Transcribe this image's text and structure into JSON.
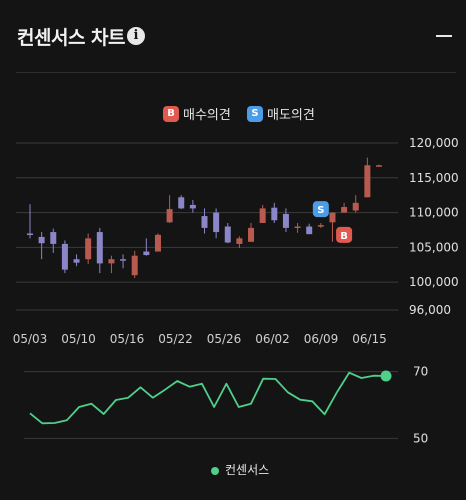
{
  "header": {
    "title": "컨센서스 차트",
    "info_icon": "info-icon",
    "collapse_icon": "minus-icon"
  },
  "legend": {
    "buy_badge": "B",
    "buy_label": "매수의견",
    "sell_badge": "S",
    "sell_label": "매도의견"
  },
  "colors": {
    "background": "#141414",
    "buy": "#e05a4f",
    "sell": "#4a9de6",
    "up_candle": "#b85a4f",
    "down_candle": "#8a86c8",
    "consensus_line": "#4fd08a"
  },
  "chart_data": [
    {
      "type": "candlestick",
      "title": "",
      "x_ticks": [
        "05/03",
        "05/10",
        "05/16",
        "05/22",
        "05/26",
        "06/02",
        "06/09",
        "06/15"
      ],
      "y_ticks": [
        96000,
        100000,
        105000,
        110000,
        115000,
        120000
      ],
      "y_tick_labels": [
        "96,000",
        "100,000",
        "105,000",
        "110,000",
        "115,000",
        "120,000"
      ],
      "ylim": [
        96000,
        120000
      ],
      "candles": [
        {
          "o": 107000,
          "h": 111200,
          "l": 106300,
          "c": 106800
        },
        {
          "o": 106500,
          "h": 107200,
          "l": 103300,
          "c": 105600
        },
        {
          "o": 107200,
          "h": 107700,
          "l": 104200,
          "c": 105500
        },
        {
          "o": 105500,
          "h": 106000,
          "l": 101300,
          "c": 101800
        },
        {
          "o": 103300,
          "h": 104000,
          "l": 102300,
          "c": 102800
        },
        {
          "o": 103300,
          "h": 107000,
          "l": 102600,
          "c": 106300
        },
        {
          "o": 107200,
          "h": 107800,
          "l": 101300,
          "c": 102700
        },
        {
          "o": 102700,
          "h": 103800,
          "l": 101300,
          "c": 103300
        },
        {
          "o": 103300,
          "h": 104000,
          "l": 102000,
          "c": 103100
        },
        {
          "o": 101000,
          "h": 104500,
          "l": 100600,
          "c": 103800
        },
        {
          "o": 104400,
          "h": 106300,
          "l": 103800,
          "c": 103900
        },
        {
          "o": 104400,
          "h": 107000,
          "l": 104400,
          "c": 106800
        },
        {
          "o": 108600,
          "h": 112500,
          "l": 108500,
          "c": 110500
        },
        {
          "o": 112200,
          "h": 112500,
          "l": 110500,
          "c": 110600
        },
        {
          "o": 111100,
          "h": 111800,
          "l": 110000,
          "c": 110600
        },
        {
          "o": 109500,
          "h": 110600,
          "l": 107000,
          "c": 107800
        },
        {
          "o": 110000,
          "h": 110600,
          "l": 106300,
          "c": 107200
        },
        {
          "o": 108000,
          "h": 108500,
          "l": 105600,
          "c": 105700
        },
        {
          "o": 105500,
          "h": 106600,
          "l": 104900,
          "c": 106300
        },
        {
          "o": 105800,
          "h": 108500,
          "l": 105800,
          "c": 107800
        },
        {
          "o": 108500,
          "h": 111100,
          "l": 108500,
          "c": 110600
        },
        {
          "o": 110700,
          "h": 111400,
          "l": 108500,
          "c": 108900
        },
        {
          "o": 109800,
          "h": 110600,
          "l": 107200,
          "c": 107800
        },
        {
          "o": 107800,
          "h": 108500,
          "l": 107100,
          "c": 108000
        },
        {
          "o": 108000,
          "h": 108400,
          "l": 106900,
          "c": 106900
        },
        {
          "o": 108000,
          "h": 108500,
          "l": 107800,
          "c": 108200
        },
        {
          "o": 108600,
          "h": 110000,
          "l": 105800,
          "c": 110000
        },
        {
          "o": 110000,
          "h": 111400,
          "l": 110000,
          "c": 110800
        },
        {
          "o": 110300,
          "h": 112500,
          "l": 110000,
          "c": 111400
        },
        {
          "o": 112200,
          "h": 117900,
          "l": 112200,
          "c": 116800
        },
        {
          "o": 116700,
          "h": 116900,
          "l": 116600,
          "c": 116800
        }
      ],
      "signals": [
        {
          "type": "sell",
          "label": "S",
          "index": 25,
          "price": 110500
        },
        {
          "type": "buy",
          "label": "B",
          "index": 27,
          "price": 106800
        }
      ]
    },
    {
      "type": "line",
      "title": "",
      "series": [
        {
          "name": "컨센서스",
          "values": [
            57.5,
            54.5,
            54.6,
            55.4,
            59.4,
            60.4,
            57.3,
            61.5,
            62.2,
            65.3,
            62.2,
            64.6,
            67.2,
            65.5,
            66.4,
            59.4,
            66.4,
            59.4,
            60.4,
            67.9,
            67.8,
            63.8,
            61.6,
            61.1,
            57.2,
            63.8,
            69.7,
            68.1,
            68.8,
            68.7
          ]
        }
      ],
      "y_ticks": [
        50,
        70
      ],
      "ylim": [
        45,
        75
      ]
    }
  ],
  "bottom_legend": {
    "label": "컨센서스"
  }
}
